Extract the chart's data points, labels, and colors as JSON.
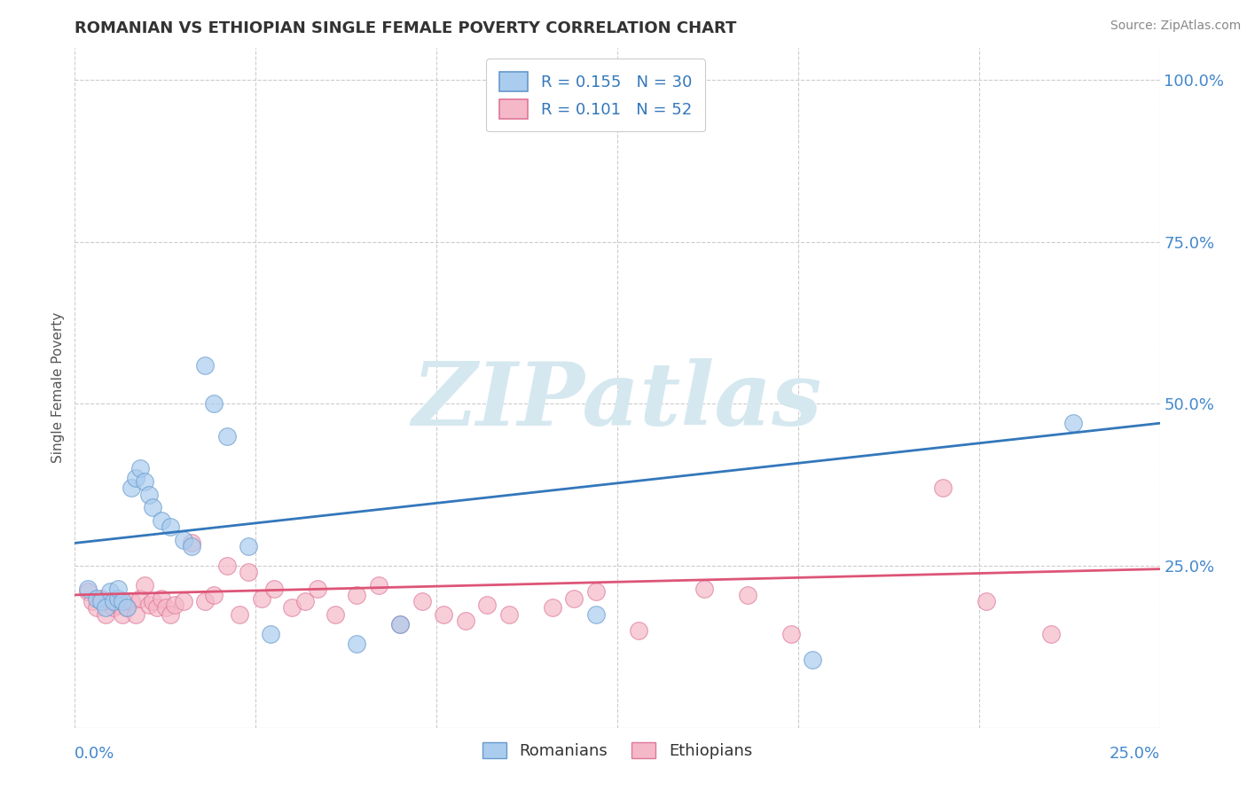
{
  "title": "ROMANIAN VS ETHIOPIAN SINGLE FEMALE POVERTY CORRELATION CHART",
  "source": "Source: ZipAtlas.com",
  "ylabel": "Single Female Poverty",
  "xlim": [
    0.0,
    0.25
  ],
  "ylim": [
    0.0,
    1.05
  ],
  "legend_r1": "R = 0.155",
  "legend_n1": "N = 30",
  "legend_r2": "R = 0.101",
  "legend_n2": "N = 52",
  "romanian_color": "#aaccee",
  "romanian_edge": "#6699cc",
  "ethiopian_color": "#f5b8c8",
  "ethiopian_edge": "#dd7799",
  "trendline_romanian_color": "#3377bb",
  "trendline_ethiopian_color": "#dd5577",
  "watermark_color": "#d5e8f0",
  "romanians_x": [
    0.003,
    0.005,
    0.006,
    0.007,
    0.008,
    0.009,
    0.01,
    0.01,
    0.011,
    0.012,
    0.013,
    0.014,
    0.015,
    0.016,
    0.017,
    0.018,
    0.02,
    0.022,
    0.025,
    0.027,
    0.03,
    0.032,
    0.035,
    0.04,
    0.045,
    0.065,
    0.075,
    0.12,
    0.17,
    0.23
  ],
  "romanians_y": [
    0.215,
    0.2,
    0.195,
    0.185,
    0.21,
    0.195,
    0.2,
    0.215,
    0.195,
    0.185,
    0.37,
    0.385,
    0.4,
    0.38,
    0.36,
    0.34,
    0.32,
    0.31,
    0.29,
    0.28,
    0.56,
    0.5,
    0.45,
    0.28,
    0.145,
    0.13,
    0.16,
    0.175,
    0.105,
    0.47
  ],
  "ethiopians_x": [
    0.003,
    0.004,
    0.005,
    0.006,
    0.007,
    0.008,
    0.009,
    0.01,
    0.011,
    0.012,
    0.013,
    0.014,
    0.015,
    0.016,
    0.017,
    0.018,
    0.019,
    0.02,
    0.021,
    0.022,
    0.023,
    0.025,
    0.027,
    0.03,
    0.032,
    0.035,
    0.038,
    0.04,
    0.043,
    0.046,
    0.05,
    0.053,
    0.056,
    0.06,
    0.065,
    0.07,
    0.075,
    0.08,
    0.085,
    0.09,
    0.095,
    0.1,
    0.11,
    0.115,
    0.12,
    0.13,
    0.145,
    0.155,
    0.165,
    0.2,
    0.21,
    0.225
  ],
  "ethiopians_y": [
    0.21,
    0.195,
    0.185,
    0.2,
    0.175,
    0.195,
    0.185,
    0.19,
    0.175,
    0.185,
    0.195,
    0.175,
    0.2,
    0.22,
    0.19,
    0.195,
    0.185,
    0.2,
    0.185,
    0.175,
    0.19,
    0.195,
    0.285,
    0.195,
    0.205,
    0.25,
    0.175,
    0.24,
    0.2,
    0.215,
    0.185,
    0.195,
    0.215,
    0.175,
    0.205,
    0.22,
    0.16,
    0.195,
    0.175,
    0.165,
    0.19,
    0.175,
    0.185,
    0.2,
    0.21,
    0.15,
    0.215,
    0.205,
    0.145,
    0.37,
    0.195,
    0.145
  ],
  "trend_rom_x0": 0.0,
  "trend_rom_y0": 0.285,
  "trend_rom_x1": 0.25,
  "trend_rom_y1": 0.47,
  "trend_eth_x0": 0.0,
  "trend_eth_y0": 0.205,
  "trend_eth_x1": 0.25,
  "trend_eth_y1": 0.245
}
